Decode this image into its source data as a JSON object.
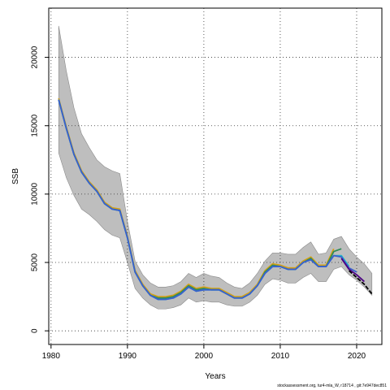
{
  "chart_data": {
    "type": "line",
    "xlabel": "Years",
    "ylabel": "SSB",
    "xlim": [
      1979.7,
      2023.3
    ],
    "ylim": [
      -1000,
      23600
    ],
    "xticks": [
      1980,
      1990,
      2000,
      2010,
      2020
    ],
    "yticks": [
      0,
      5000,
      10000,
      15000,
      20000
    ],
    "grid": true,
    "grid_style": "dotted",
    "band": {
      "name": "confidence interval",
      "color": "#bebebe",
      "x": [
        1981,
        1982,
        1983,
        1984,
        1985,
        1986,
        1987,
        1988,
        1989,
        1990,
        1991,
        1992,
        1993,
        1994,
        1995,
        1996,
        1997,
        1998,
        1999,
        2000,
        2001,
        2002,
        2003,
        2004,
        2005,
        2006,
        2007,
        2008,
        2009,
        2010,
        2011,
        2012,
        2013,
        2014,
        2015,
        2016,
        2017,
        2018,
        2019,
        2020,
        2021,
        2022
      ],
      "upper": [
        22300,
        19000,
        16300,
        14400,
        13400,
        12500,
        12000,
        11700,
        11500,
        8000,
        5100,
        4100,
        3500,
        3200,
        3200,
        3300,
        3600,
        4200,
        3900,
        4200,
        4000,
        3900,
        3500,
        3200,
        3100,
        3500,
        4200,
        5100,
        5700,
        5700,
        5600,
        5600,
        6100,
        6500,
        5600,
        5700,
        6700,
        6900,
        6000,
        5400,
        4900,
        4200
      ],
      "lower": [
        13000,
        11200,
        9900,
        8900,
        8500,
        8000,
        7400,
        7000,
        6800,
        5000,
        3100,
        2400,
        1900,
        1600,
        1600,
        1700,
        1900,
        2400,
        2100,
        2200,
        2100,
        2100,
        1900,
        1800,
        1800,
        2100,
        2600,
        3400,
        3800,
        3700,
        3500,
        3500,
        3900,
        4200,
        3600,
        3600,
        4500,
        4700,
        4100,
        3700,
        3200,
        2600
      ]
    },
    "series": [
      {
        "color": "#d4a017",
        "x": [
          1981,
          1982,
          1983,
          1984,
          1985,
          1986,
          1987,
          1988,
          1989,
          1990,
          1991,
          1992,
          1993,
          1994,
          1995,
          1996,
          1997,
          1998,
          1999,
          2000,
          2001,
          2002,
          2003,
          2004,
          2005,
          2006,
          2007,
          2008,
          2009,
          2010,
          2011,
          2012,
          2013,
          2014,
          2015,
          2016,
          2017
        ],
        "y": [
          17000,
          14900,
          13000,
          11700,
          10900,
          10300,
          9400,
          9000,
          8900,
          6900,
          4400,
          3400,
          2700,
          2500,
          2500,
          2600,
          2900,
          3400,
          3100,
          3200,
          3100,
          3100,
          2800,
          2500,
          2500,
          2800,
          3400,
          4400,
          4900,
          4800,
          4600,
          4600,
          5100,
          5400,
          4800,
          4800,
          6000
        ]
      },
      {
        "color": "#2e8b57",
        "x": [
          1981,
          1982,
          1983,
          1984,
          1985,
          1986,
          1987,
          1988,
          1989,
          1990,
          1991,
          1992,
          1993,
          1994,
          1995,
          1996,
          1997,
          1998,
          1999,
          2000,
          2001,
          2002,
          2003,
          2004,
          2005,
          2006,
          2007,
          2008,
          2009,
          2010,
          2011,
          2012,
          2013,
          2014,
          2015,
          2016,
          2017,
          2018
        ],
        "y": [
          16900,
          14800,
          12900,
          11600,
          10800,
          10200,
          9300,
          8900,
          8800,
          6800,
          4300,
          3300,
          2600,
          2400,
          2400,
          2500,
          2800,
          3300,
          3000,
          3100,
          3000,
          3000,
          2700,
          2400,
          2400,
          2700,
          3300,
          4300,
          4800,
          4700,
          4500,
          4500,
          5000,
          5300,
          4700,
          4700,
          5800,
          6000
        ]
      },
      {
        "color": "#1fb5c9",
        "x": [
          1981,
          1982,
          1983,
          1984,
          1985,
          1986,
          1987,
          1988,
          1989,
          1990,
          1991,
          1992,
          1993,
          1994,
          1995,
          1996,
          1997,
          1998,
          1999,
          2000,
          2001,
          2002,
          2003,
          2004,
          2005,
          2006,
          2007,
          2008,
          2009,
          2010,
          2011,
          2012,
          2013,
          2014,
          2015,
          2016,
          2017,
          2018,
          2019
        ],
        "y": [
          16900,
          14800,
          12900,
          11600,
          10800,
          10200,
          9300,
          8900,
          8800,
          6800,
          4300,
          3300,
          2600,
          2300,
          2300,
          2400,
          2700,
          3200,
          2900,
          3000,
          3000,
          3000,
          2700,
          2400,
          2400,
          2700,
          3300,
          4200,
          4700,
          4700,
          4500,
          4500,
          5000,
          5200,
          4700,
          4700,
          5500,
          5500,
          4700
        ]
      },
      {
        "color": "#3a5fcd",
        "x": [
          1981,
          1982,
          1983,
          1984,
          1985,
          1986,
          1987,
          1988,
          1989,
          1990,
          1991,
          1992,
          1993,
          1994,
          1995,
          1996,
          1997,
          1998,
          1999,
          2000,
          2001,
          2002,
          2003,
          2004,
          2005,
          2006,
          2007,
          2008,
          2009,
          2010,
          2011,
          2012,
          2013,
          2014,
          2015,
          2016,
          2017,
          2018,
          2019,
          2020
        ],
        "y": [
          16900,
          14800,
          12900,
          11600,
          10800,
          10200,
          9300,
          8900,
          8800,
          6800,
          4300,
          3300,
          2600,
          2300,
          2300,
          2400,
          2700,
          3200,
          2900,
          3000,
          3000,
          3000,
          2700,
          2400,
          2400,
          2700,
          3300,
          4200,
          4700,
          4700,
          4500,
          4500,
          5000,
          5200,
          4700,
          4700,
          5500,
          5400,
          4600,
          4300
        ]
      },
      {
        "color": "#4b0082",
        "x": [
          2018,
          2019,
          2020,
          2021
        ],
        "y": [
          5300,
          4500,
          4100,
          3600
        ]
      },
      {
        "color": "#000000",
        "dashed": true,
        "x": [
          2019,
          2020,
          2021,
          2022
        ],
        "y": [
          4400,
          3900,
          3400,
          2700
        ]
      }
    ]
  },
  "footer": "stockassessment.org, tur4-mla_W, r18714 , git:7e947dec851"
}
